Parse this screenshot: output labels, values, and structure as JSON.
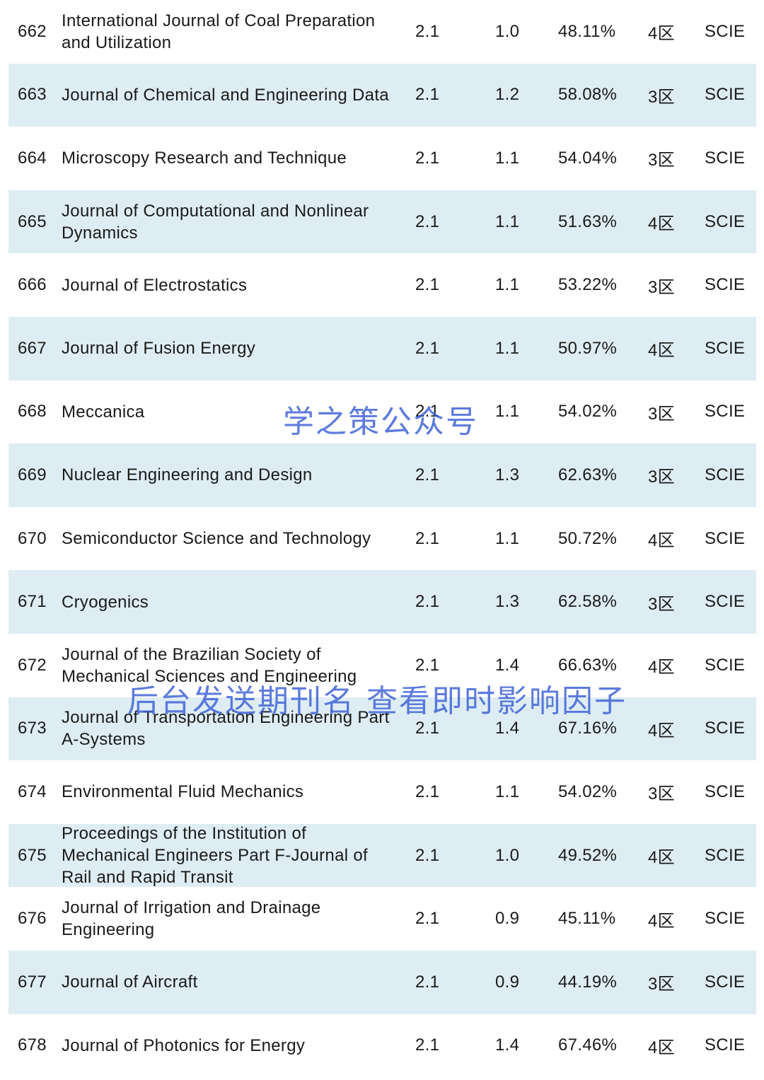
{
  "rows": [
    {
      "no": "662",
      "name": "International Journal of Coal Preparation and Utilization",
      "if": "2.1",
      "if2": "1.0",
      "pct": "48.11%",
      "zone": "4区",
      "db": "SCIE"
    },
    {
      "no": "663",
      "name": "Journal of Chemical and Engineering Data",
      "if": "2.1",
      "if2": "1.2",
      "pct": "58.08%",
      "zone": "3区",
      "db": "SCIE"
    },
    {
      "no": "664",
      "name": "Microscopy Research and Technique",
      "if": "2.1",
      "if2": "1.1",
      "pct": "54.04%",
      "zone": "3区",
      "db": "SCIE"
    },
    {
      "no": "665",
      "name": "Journal of Computational and Nonlinear Dynamics",
      "if": "2.1",
      "if2": "1.1",
      "pct": "51.63%",
      "zone": "4区",
      "db": "SCIE"
    },
    {
      "no": "666",
      "name": "Journal of Electrostatics",
      "if": "2.1",
      "if2": "1.1",
      "pct": "53.22%",
      "zone": "3区",
      "db": "SCIE"
    },
    {
      "no": "667",
      "name": "Journal of Fusion Energy",
      "if": "2.1",
      "if2": "1.1",
      "pct": "50.97%",
      "zone": "4区",
      "db": "SCIE"
    },
    {
      "no": "668",
      "name": "Meccanica",
      "if": "2.1",
      "if2": "1.1",
      "pct": "54.02%",
      "zone": "3区",
      "db": "SCIE"
    },
    {
      "no": "669",
      "name": "Nuclear Engineering and Design",
      "if": "2.1",
      "if2": "1.3",
      "pct": "62.63%",
      "zone": "3区",
      "db": "SCIE"
    },
    {
      "no": "670",
      "name": "Semiconductor Science and Technology",
      "if": "2.1",
      "if2": "1.1",
      "pct": "50.72%",
      "zone": "4区",
      "db": "SCIE"
    },
    {
      "no": "671",
      "name": "Cryogenics",
      "if": "2.1",
      "if2": "1.3",
      "pct": "62.58%",
      "zone": "3区",
      "db": "SCIE"
    },
    {
      "no": "672",
      "name": "Journal of the Brazilian Society of Mechanical Sciences and Engineering",
      "if": "2.1",
      "if2": "1.4",
      "pct": "66.63%",
      "zone": "4区",
      "db": "SCIE"
    },
    {
      "no": "673",
      "name": "Journal of Transportation Engineering Part A-Systems",
      "if": "2.1",
      "if2": "1.4",
      "pct": "67.16%",
      "zone": "4区",
      "db": "SCIE"
    },
    {
      "no": "674",
      "name": "Environmental Fluid Mechanics",
      "if": "2.1",
      "if2": "1.1",
      "pct": "54.02%",
      "zone": "3区",
      "db": "SCIE"
    },
    {
      "no": "675",
      "name": "Proceedings of the Institution of Mechanical Engineers Part F-Journal of Rail and Rapid Transit",
      "if": "2.1",
      "if2": "1.0",
      "pct": "49.52%",
      "zone": "4区",
      "db": "SCIE"
    },
    {
      "no": "676",
      "name": "Journal of Irrigation and Drainage Engineering",
      "if": "2.1",
      "if2": "0.9",
      "pct": "45.11%",
      "zone": "4区",
      "db": "SCIE"
    },
    {
      "no": "677",
      "name": "Journal of Aircraft",
      "if": "2.1",
      "if2": "0.9",
      "pct": "44.19%",
      "zone": "3区",
      "db": "SCIE"
    },
    {
      "no": "678",
      "name": "Journal of Photonics for Energy",
      "if": "2.1",
      "if2": "1.4",
      "pct": "67.46%",
      "zone": "4区",
      "db": "SCIE"
    }
  ],
  "watermarks": {
    "primary": "学之策公众号",
    "secondary": "后台发送期刊名 查看即时影响因子"
  },
  "colors": {
    "stripe": "#deedf3",
    "watermark": "#3b5fd6"
  }
}
